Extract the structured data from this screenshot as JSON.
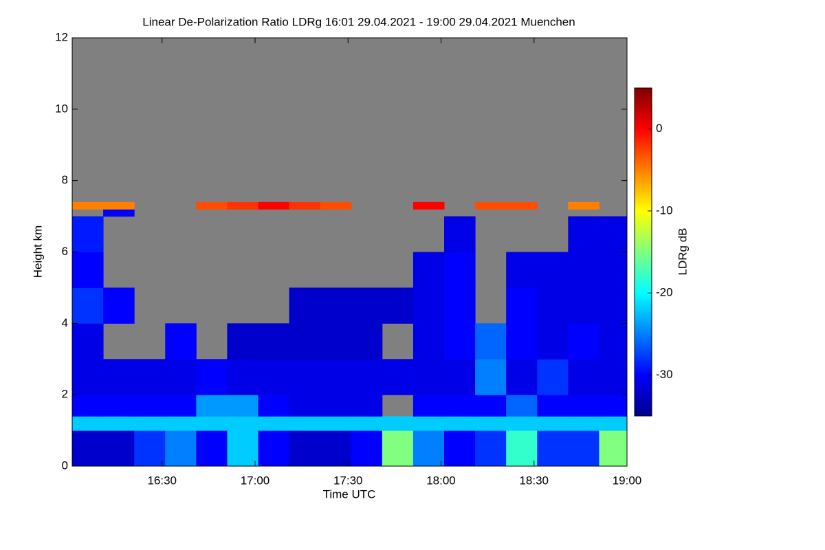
{
  "chart_data": {
    "type": "heatmap",
    "title": "Linear De-Polarization Ratio LDRg   16:01 29.04.2021 - 19:00 29.04.2021 Muenchen",
    "x_label": "Time UTC",
    "y_label": "Height km",
    "colorbar_label": "LDRg dB",
    "colormap": "jet",
    "missing_color": "#808080",
    "xlim": [
      961,
      1140
    ],
    "xticks": [
      {
        "value": 990,
        "label": "16:30"
      },
      {
        "value": 1020,
        "label": "17:00"
      },
      {
        "value": 1050,
        "label": "17:30"
      },
      {
        "value": 1080,
        "label": "18:00"
      },
      {
        "value": 1110,
        "label": "18:30"
      },
      {
        "value": 1140,
        "label": "19:00"
      }
    ],
    "ylim": [
      0,
      12
    ],
    "yticks": [
      0,
      2,
      4,
      6,
      8,
      10,
      12
    ],
    "zlim": [
      -35,
      5
    ],
    "zticks": [
      0,
      -10,
      -20,
      -30
    ],
    "x_bins": [
      961,
      971,
      981,
      991,
      1001,
      1011,
      1021,
      1031,
      1041,
      1051,
      1061,
      1071,
      1081,
      1091,
      1101,
      1111,
      1121,
      1131,
      1140
    ],
    "y_bins": [
      0,
      1,
      1.4,
      2,
      3,
      4,
      5,
      6,
      7,
      7.2,
      7.4,
      12
    ],
    "z": [
      [
        -32,
        -32,
        -28,
        -25,
        -30,
        -22,
        -30,
        -32,
        -32,
        -30,
        -15,
        -25,
        -30,
        -28,
        -18,
        -28,
        -28,
        -15
      ],
      [
        -22,
        -22,
        -22,
        -22,
        -22,
        -22,
        -22,
        -22,
        -22,
        -22,
        -22,
        -22,
        -22,
        -22,
        -22,
        -22,
        -22,
        -22
      ],
      [
        -30,
        -30,
        -30,
        -30,
        -24,
        -24,
        -30,
        -31,
        -31,
        -31,
        null,
        -30,
        -30,
        -30,
        -26,
        -30,
        -30,
        -30
      ],
      [
        -31,
        -31,
        -31,
        -31,
        -30,
        -31,
        -31,
        -31,
        -31,
        -31,
        -31,
        -31,
        -31,
        -25,
        -31,
        -28,
        -31,
        -31
      ],
      [
        -31,
        null,
        null,
        -30,
        null,
        -32,
        -32,
        -32,
        -32,
        -32,
        null,
        -31,
        -30,
        -26,
        -30,
        -31,
        -30,
        -31
      ],
      [
        -28,
        -30,
        null,
        null,
        null,
        null,
        null,
        -32,
        -32,
        -32,
        -32,
        -31,
        -30,
        null,
        -30,
        -31,
        -31,
        -31
      ],
      [
        -30,
        null,
        null,
        null,
        null,
        null,
        null,
        null,
        null,
        null,
        null,
        -31,
        -30,
        null,
        -31,
        -31,
        -31,
        -31
      ],
      [
        -29,
        null,
        null,
        null,
        null,
        null,
        null,
        null,
        null,
        null,
        null,
        null,
        -31,
        null,
        null,
        null,
        -31,
        -31
      ],
      [
        null,
        -30,
        null,
        null,
        null,
        null,
        null,
        null,
        null,
        null,
        null,
        null,
        null,
        null,
        null,
        null,
        null,
        null
      ],
      [
        -5,
        -5,
        null,
        null,
        -3,
        -2,
        0,
        -2,
        -3,
        null,
        null,
        0,
        null,
        -3,
        -3,
        null,
        -5,
        null
      ],
      [
        null,
        null,
        null,
        null,
        null,
        null,
        null,
        null,
        null,
        null,
        null,
        null,
        null,
        null,
        null,
        null,
        null,
        null
      ]
    ]
  }
}
